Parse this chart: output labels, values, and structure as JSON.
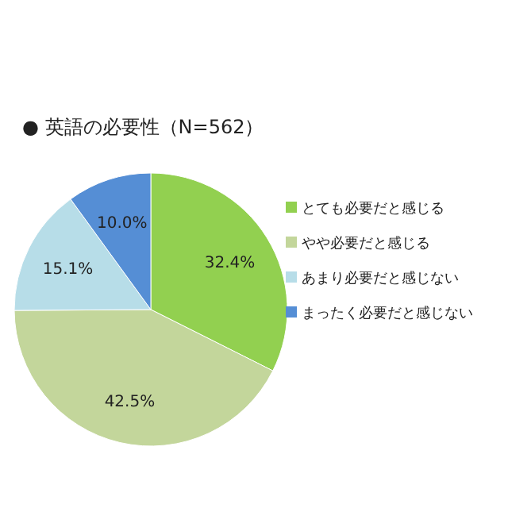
{
  "chart_data": {
    "type": "pie",
    "title": "● 英語の必要性（N=562）",
    "categories": [
      "とても必要だと感じる",
      "やや必要だと感じる",
      "あまり必要だと感じない",
      "まったく必要だと感じない"
    ],
    "values": [
      32.4,
      42.5,
      15.1,
      10.0
    ],
    "value_labels": [
      "32.4%",
      "42.5%",
      "15.1%",
      "10.0%"
    ],
    "colors": [
      "#92d050",
      "#c3d69b",
      "#b7dde8",
      "#558ed5"
    ],
    "legend": "right"
  }
}
